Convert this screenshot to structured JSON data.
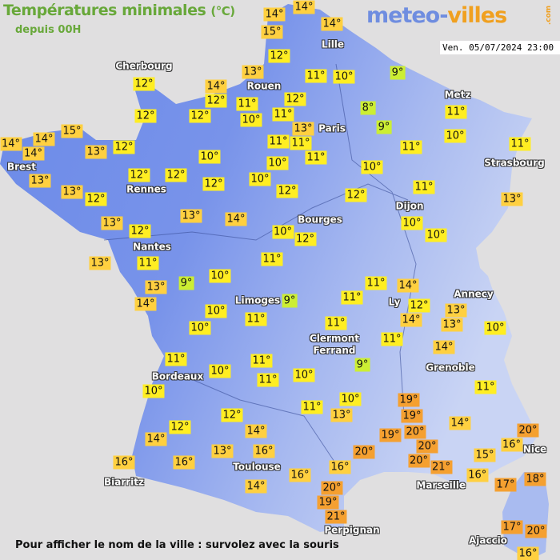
{
  "header": {
    "title": "Températures minimales",
    "unit": "(°C)",
    "subtitle": "depuis 00H"
  },
  "logo": {
    "part1": "meteo-",
    "part2": "villes",
    "part3": ".com"
  },
  "timestamp": "Ven. 05/07/2024 23:00",
  "footer": "Pour afficher le nom de la ville : survolez avec la souris",
  "colors": {
    "land": "#6b8ae8",
    "cold": "#ccee33",
    "mild": "#ffee22",
    "warm": "#ffd040",
    "hot": "#f5a030",
    "title": "#68a83a"
  },
  "cities": [
    "Cherbourg",
    "Rouen",
    "Lille",
    "Paris",
    "Metz",
    "Strasbourg",
    "Brest",
    "Rennes",
    "Nantes",
    "Dijon",
    "Bourges",
    "Limoges",
    "Ly",
    "Annecy",
    "Clermont\nFerrand",
    "Grenoble",
    "Bordeaux",
    "Toulouse",
    "Biarritz",
    "Marseille",
    "Nice",
    "Perpignan",
    "Ajaccio"
  ],
  "temperatures": [
    "14°",
    "14°",
    "15°",
    "14°",
    "12°",
    "13°",
    "11°",
    "10°",
    "9°",
    "14°",
    "12°",
    "11°",
    "10°",
    "11°",
    "12°",
    "12°",
    "13°",
    "11°",
    "11°",
    "11°",
    "8°",
    "9°",
    "11°",
    "11°",
    "10°",
    "11°",
    "10°",
    "11°",
    "12°",
    "12°",
    "10°",
    "10°",
    "12°",
    "10°",
    "12°",
    "12°",
    "15°",
    "14°",
    "14°",
    "14°",
    "13°",
    "12°",
    "13°",
    "13°",
    "12°",
    "12°",
    "12°",
    "13°",
    "13°",
    "12°",
    "13°",
    "14°",
    "13°",
    "11°",
    "13°",
    "14°",
    "9°",
    "10°",
    "10°",
    "10°",
    "11°",
    "11°",
    "10°",
    "12°",
    "9°",
    "10°",
    "10°",
    "11°",
    "14°",
    "11°",
    "12°",
    "14°",
    "13°",
    "13°",
    "10°",
    "11°",
    "11°",
    "14°",
    "9°",
    "10°",
    "11°",
    "10°",
    "11°",
    "11°",
    "10°",
    "11°",
    "19°",
    "19°",
    "20°",
    "19°",
    "20°",
    "20°",
    "21°",
    "14°",
    "20°",
    "16°",
    "16°",
    "13°",
    "10°",
    "11°",
    "12°",
    "14°",
    "16°",
    "13°",
    "12°",
    "14°",
    "16°",
    "16°",
    "14°",
    "20°",
    "19°",
    "21°",
    "16°",
    "15°",
    "17°",
    "18°",
    "20°",
    "16°",
    "17°",
    "20°",
    "16°"
  ]
}
